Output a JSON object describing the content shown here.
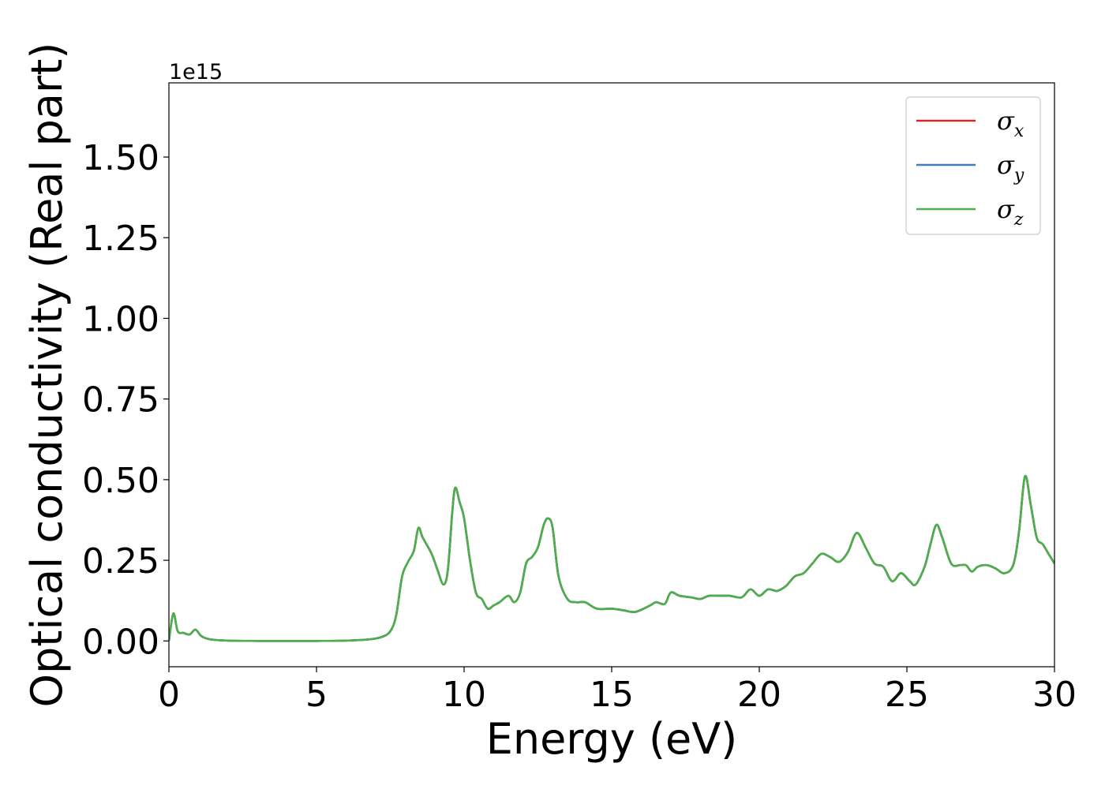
{
  "chart_data": {
    "type": "line",
    "xlabel": "Energy (eV)",
    "ylabel": "Optical conductivity (Real part)",
    "offset_text": "1e15",
    "xlim": [
      0,
      30
    ],
    "ylim": [
      -0.08,
      1.73
    ],
    "y_scale_factor": 1000000000000000.0,
    "x_ticks": [
      0,
      5,
      10,
      15,
      20,
      25,
      30
    ],
    "x_tick_labels": [
      "0",
      "5",
      "10",
      "15",
      "20",
      "25",
      "30"
    ],
    "y_ticks": [
      0.0,
      0.25,
      0.5,
      0.75,
      1.0,
      1.25,
      1.5
    ],
    "y_tick_labels": [
      "0.00",
      "0.25",
      "0.50",
      "0.75",
      "1.00",
      "1.25",
      "1.50"
    ],
    "grid": false,
    "legend_position": "top-right",
    "legend": [
      {
        "symbol": "σ",
        "subscript": "x",
        "color": "#d62728"
      },
      {
        "symbol": "σ",
        "subscript": "y",
        "color": "#3d7fbf"
      },
      {
        "symbol": "σ",
        "subscript": "z",
        "color": "#4daf4a"
      }
    ],
    "x": [
      0,
      0.15,
      0.3,
      0.5,
      0.7,
      0.9,
      1.1,
      1.4,
      2,
      3,
      4,
      5,
      6,
      6.8,
      7.2,
      7.5,
      7.7,
      7.9,
      8.1,
      8.3,
      8.45,
      8.6,
      8.9,
      9.1,
      9.3,
      9.45,
      9.6,
      9.7,
      9.85,
      10.0,
      10.2,
      10.4,
      10.6,
      10.8,
      11.0,
      11.2,
      11.5,
      11.7,
      11.9,
      12.1,
      12.3,
      12.5,
      12.7,
      12.85,
      13.0,
      13.2,
      13.5,
      13.8,
      14.1,
      14.5,
      15.0,
      15.4,
      15.8,
      16.3,
      16.5,
      16.8,
      17.0,
      17.3,
      17.7,
      18.0,
      18.3,
      18.7,
      19.0,
      19.4,
      19.7,
      20.0,
      20.3,
      20.6,
      20.9,
      21.2,
      21.5,
      21.8,
      22.1,
      22.4,
      22.7,
      23.0,
      23.3,
      23.6,
      23.9,
      24.2,
      24.5,
      24.8,
      25.1,
      25.3,
      25.6,
      25.8,
      26.0,
      26.2,
      26.5,
      26.8,
      27.0,
      27.2,
      27.4,
      27.7,
      28.0,
      28.3,
      28.6,
      28.8,
      29.0,
      29.2,
      29.4,
      29.6,
      29.8,
      30.0
    ],
    "series": [
      {
        "name": "σx",
        "color": "#d62728",
        "values": [
          0.0,
          0.085,
          0.03,
          0.025,
          0.02,
          0.035,
          0.015,
          0.005,
          0.001,
          0.0,
          0.0,
          0.0,
          0.001,
          0.005,
          0.012,
          0.03,
          0.08,
          0.2,
          0.245,
          0.28,
          0.35,
          0.32,
          0.27,
          0.22,
          0.175,
          0.22,
          0.4,
          0.475,
          0.43,
          0.38,
          0.25,
          0.15,
          0.13,
          0.1,
          0.11,
          0.12,
          0.14,
          0.12,
          0.15,
          0.24,
          0.26,
          0.29,
          0.36,
          0.38,
          0.35,
          0.2,
          0.13,
          0.12,
          0.12,
          0.1,
          0.1,
          0.095,
          0.09,
          0.11,
          0.12,
          0.115,
          0.15,
          0.14,
          0.135,
          0.13,
          0.14,
          0.14,
          0.14,
          0.135,
          0.16,
          0.14,
          0.16,
          0.155,
          0.17,
          0.2,
          0.21,
          0.24,
          0.27,
          0.26,
          0.245,
          0.275,
          0.335,
          0.29,
          0.24,
          0.23,
          0.185,
          0.21,
          0.185,
          0.175,
          0.23,
          0.3,
          0.36,
          0.32,
          0.24,
          0.235,
          0.235,
          0.215,
          0.23,
          0.235,
          0.225,
          0.21,
          0.235,
          0.34,
          0.51,
          0.42,
          0.32,
          0.3,
          0.27,
          0.24
        ]
      },
      {
        "name": "σy",
        "color": "#3d7fbf",
        "values": [
          0.0,
          0.085,
          0.03,
          0.025,
          0.02,
          0.035,
          0.015,
          0.005,
          0.001,
          0.0,
          0.0,
          0.0,
          0.001,
          0.005,
          0.012,
          0.03,
          0.08,
          0.2,
          0.245,
          0.28,
          0.35,
          0.32,
          0.27,
          0.22,
          0.175,
          0.22,
          0.4,
          0.475,
          0.43,
          0.38,
          0.25,
          0.15,
          0.13,
          0.1,
          0.11,
          0.12,
          0.14,
          0.12,
          0.15,
          0.24,
          0.26,
          0.29,
          0.36,
          0.38,
          0.35,
          0.2,
          0.13,
          0.12,
          0.12,
          0.1,
          0.1,
          0.095,
          0.09,
          0.11,
          0.12,
          0.115,
          0.15,
          0.14,
          0.135,
          0.13,
          0.14,
          0.14,
          0.14,
          0.135,
          0.16,
          0.14,
          0.16,
          0.155,
          0.17,
          0.2,
          0.21,
          0.24,
          0.27,
          0.26,
          0.245,
          0.275,
          0.335,
          0.29,
          0.24,
          0.23,
          0.185,
          0.21,
          0.185,
          0.175,
          0.23,
          0.3,
          0.36,
          0.32,
          0.24,
          0.235,
          0.235,
          0.215,
          0.23,
          0.235,
          0.225,
          0.21,
          0.235,
          0.34,
          0.51,
          0.42,
          0.32,
          0.3,
          0.27,
          0.24
        ]
      },
      {
        "name": "σz",
        "color": "#4daf4a",
        "values": [
          0.0,
          0.085,
          0.03,
          0.025,
          0.02,
          0.035,
          0.015,
          0.005,
          0.001,
          0.0,
          0.0,
          0.0,
          0.001,
          0.005,
          0.012,
          0.03,
          0.08,
          0.2,
          0.245,
          0.28,
          0.35,
          0.32,
          0.27,
          0.22,
          0.175,
          0.22,
          0.4,
          0.475,
          0.43,
          0.38,
          0.25,
          0.15,
          0.13,
          0.1,
          0.11,
          0.12,
          0.14,
          0.12,
          0.15,
          0.24,
          0.26,
          0.29,
          0.36,
          0.38,
          0.35,
          0.2,
          0.13,
          0.12,
          0.12,
          0.1,
          0.1,
          0.095,
          0.09,
          0.11,
          0.12,
          0.115,
          0.15,
          0.14,
          0.135,
          0.13,
          0.14,
          0.14,
          0.14,
          0.135,
          0.16,
          0.14,
          0.16,
          0.155,
          0.17,
          0.2,
          0.21,
          0.24,
          0.27,
          0.26,
          0.245,
          0.275,
          0.335,
          0.29,
          0.24,
          0.23,
          0.185,
          0.21,
          0.185,
          0.175,
          0.23,
          0.3,
          0.36,
          0.32,
          0.24,
          0.235,
          0.235,
          0.215,
          0.23,
          0.235,
          0.225,
          0.21,
          0.235,
          0.34,
          0.51,
          0.42,
          0.32,
          0.3,
          0.27,
          0.24
        ]
      }
    ]
  }
}
